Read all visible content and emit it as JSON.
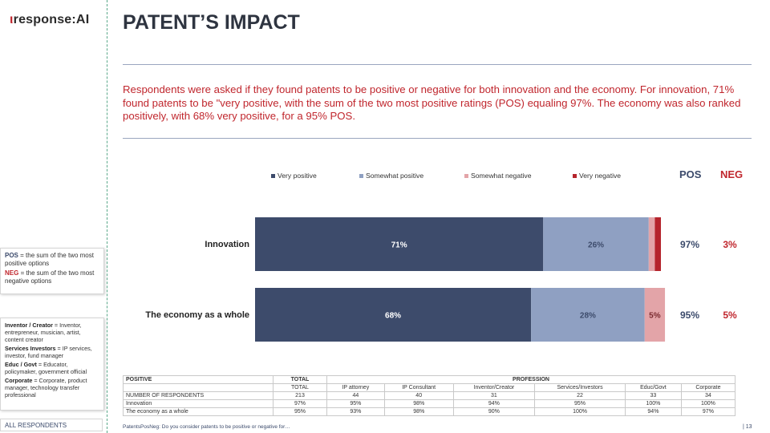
{
  "logo": {
    "tick": "ι",
    "text": "response",
    "ai": ":AI"
  },
  "sidebar": {
    "pos_key": "POS",
    "pos_text": " = the sum of the two most positive options",
    "neg_key": "NEG",
    "neg_text": " = the sum of the two most negative options",
    "defs": [
      {
        "key": "Inventor / Creator",
        "text": " = Inventor, entrepreneur, musician, artist, content creator"
      },
      {
        "key": "Services Investors",
        "text": " = IP services, investor, fund manager"
      },
      {
        "key": "Educ / Govt",
        "text": " = Educator, policymaker, government official"
      },
      {
        "key": "Corporate",
        "text": " = Corporate, product manager, technology transfer professional"
      }
    ],
    "footer": "ALL RESPONDENTS"
  },
  "header": {
    "title": "PATENT’S IMPACT",
    "description": "Respondents were asked if they found patents to be positive or negative for both innovation and the economy.  For innovation, 71% found patents to be \"very positive, with the sum of the two most positive ratings (POS) equaling 97%.  The economy was also ranked positively, with 68% very positive, for a 95% POS."
  },
  "colors": {
    "very_positive": "#3d4b6b",
    "somewhat_positive": "#8fa0c2",
    "somewhat_negative": "#e3a4a8",
    "very_negative": "#b5242c",
    "pos": "#3b4a6b",
    "neg": "#c0262d"
  },
  "chart_data": {
    "type": "bar",
    "orientation": "horizontal-stacked",
    "categories": [
      "Innovation",
      "The economy as a whole"
    ],
    "series": [
      {
        "name": "Very positive",
        "values": [
          71,
          68
        ],
        "labels": [
          "71%",
          "68%"
        ]
      },
      {
        "name": "Somewhat positive",
        "values": [
          26,
          28
        ],
        "labels": [
          "26%",
          "28%"
        ]
      },
      {
        "name": "Somewhat negative",
        "values": [
          1.5,
          5
        ],
        "labels": [
          "",
          "5%"
        ]
      },
      {
        "name": "Very negative",
        "values": [
          1.5,
          0
        ],
        "labels": [
          "",
          ""
        ]
      }
    ],
    "pos_header": "POS",
    "neg_header": "NEG",
    "pos": [
      "97%",
      "95%"
    ],
    "neg": [
      "3%",
      "5%"
    ],
    "xlim": [
      0,
      100
    ],
    "legend": "top"
  },
  "table": {
    "h1": [
      "POSITIVE",
      "TOTAL",
      "PROFESSION"
    ],
    "h2": [
      "",
      "TOTAL",
      "IP attorney",
      "IP Consultant",
      "Inventor/Creator",
      "Services/Investors",
      "Educ/Govt",
      "Corporate"
    ],
    "rows": [
      [
        "NUMBER OF RESPONDENTS",
        "213",
        "44",
        "40",
        "31",
        "22",
        "33",
        "34"
      ],
      [
        "Innovation",
        "97%",
        "95%",
        "98%",
        "94%",
        "95%",
        "100%",
        "100%"
      ],
      [
        "The economy as a whole",
        "95%",
        "93%",
        "98%",
        "90%",
        "100%",
        "94%",
        "97%"
      ]
    ]
  },
  "footer": {
    "source": "PatentsPosNeg: Do you consider patents to be positive or negative for…",
    "page": "| 13"
  }
}
